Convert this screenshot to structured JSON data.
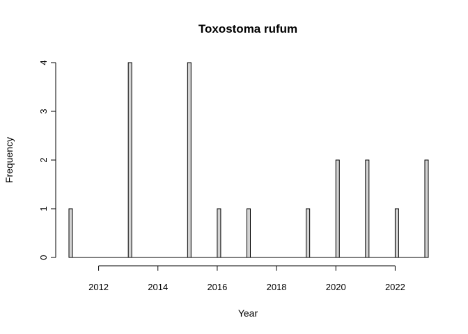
{
  "chart_data": {
    "type": "bar",
    "title": "Toxostoma rufum",
    "xlabel": "Year",
    "ylabel": "Frequency",
    "xlim": [
      2011,
      2023
    ],
    "ylim": [
      0,
      4
    ],
    "x_ticks": [
      "2012",
      "2014",
      "2016",
      "2018",
      "2020",
      "2022"
    ],
    "y_ticks": [
      "0",
      "1",
      "2",
      "3",
      "4"
    ],
    "bins": [
      {
        "year": 2011,
        "count": 1
      },
      {
        "year": 2012,
        "count": 0
      },
      {
        "year": 2013,
        "count": 4
      },
      {
        "year": 2014,
        "count": 0
      },
      {
        "year": 2015,
        "count": 4
      },
      {
        "year": 2016,
        "count": 1
      },
      {
        "year": 2017,
        "count": 1
      },
      {
        "year": 2018,
        "count": 0
      },
      {
        "year": 2019,
        "count": 1
      },
      {
        "year": 2020,
        "count": 2
      },
      {
        "year": 2021,
        "count": 2
      },
      {
        "year": 2022,
        "count": 1
      },
      {
        "year": 2023,
        "count": 2
      }
    ],
    "bar_color": "#d3d3d3",
    "grid": false
  }
}
